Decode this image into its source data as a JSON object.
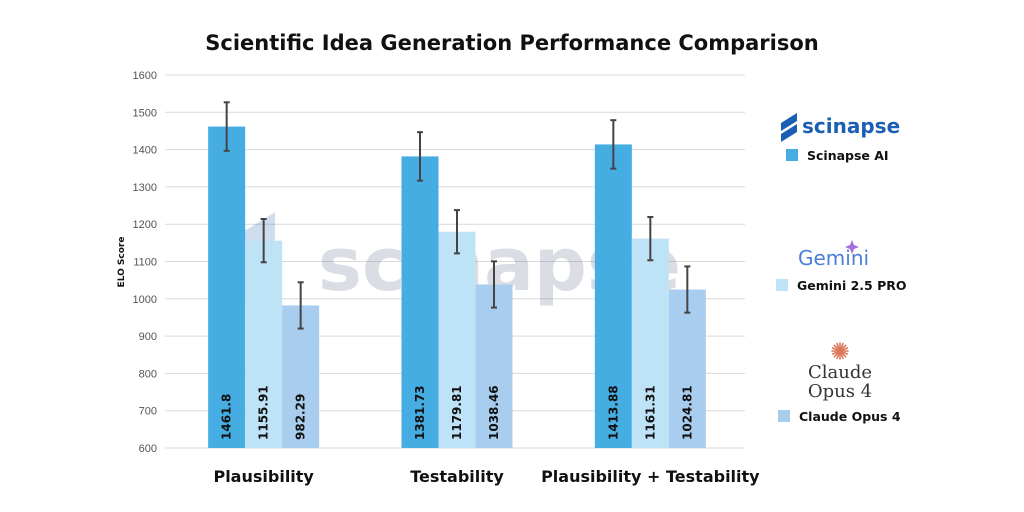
{
  "chart_data": {
    "type": "bar",
    "title": "Scientific Idea Generation Performance Comparison",
    "ylabel": "ELO Score",
    "xlabel": "",
    "ylim": [
      600,
      1600
    ],
    "yticks": [
      600,
      700,
      800,
      900,
      1000,
      1100,
      1200,
      1300,
      1400,
      1500,
      1600
    ],
    "grid": true,
    "legend_position": "right",
    "categories": [
      "Plausibility",
      "Testability",
      "Plausibility + Testability"
    ],
    "series": [
      {
        "name": "Scinapse AI",
        "color": "#46ade2",
        "values": [
          1461.8,
          1381.73,
          1413.88
        ],
        "labels": [
          "1461.8",
          "1381.73",
          "1413.88"
        ],
        "error": [
          65,
          65,
          65
        ]
      },
      {
        "name": "Gemini 2.5 PRO",
        "color": "#bfe3f6",
        "values": [
          1155.91,
          1179.81,
          1161.31
        ],
        "labels": [
          "1155.91",
          "1179.81",
          "1161.31"
        ],
        "error": [
          58,
          58,
          58
        ]
      },
      {
        "name": "Claude Opus 4",
        "color": "#a9cdee",
        "values": [
          982.29,
          1038.46,
          1024.81
        ],
        "labels": [
          "982.29",
          "1038.46",
          "1024.81"
        ],
        "error": [
          62,
          62,
          62
        ]
      }
    ]
  },
  "watermark": "scinapse",
  "logos": {
    "scinapse": "scinapse",
    "gemini": "Gemini",
    "claude_line1": "Claude",
    "claude_line2": "Opus 4"
  },
  "colors": {
    "scinapse_logo": "#1a5fb4",
    "gemini_logo": "#4a7fd8",
    "claude_logo": "#333333",
    "claude_star": "#d97757"
  }
}
